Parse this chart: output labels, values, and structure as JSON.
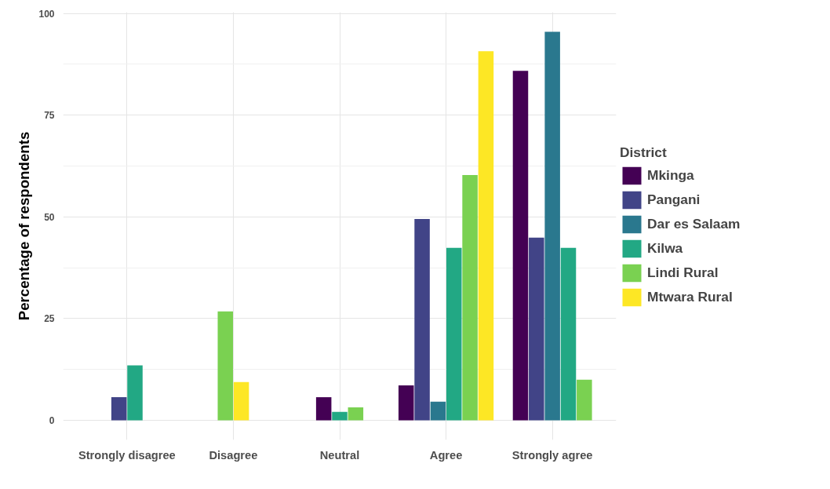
{
  "chart_data": {
    "type": "bar",
    "ylabel": "Percentage of respondents",
    "legend_title": "District",
    "categories": [
      "Strongly disagree",
      "Disagree",
      "Neutral",
      "Agree",
      "Strongly agree"
    ],
    "series": [
      {
        "name": "Mkinga",
        "color": "#440154",
        "values": [
          null,
          null,
          5.7,
          8.6,
          85.9
        ]
      },
      {
        "name": "Pangani",
        "color": "#414487",
        "values": [
          5.7,
          null,
          null,
          49.5,
          44.9
        ]
      },
      {
        "name": "Dar es Salaam",
        "color": "#2a788e",
        "values": [
          null,
          null,
          null,
          4.6,
          95.5
        ]
      },
      {
        "name": "Kilwa",
        "color": "#22a884",
        "values": [
          13.5,
          null,
          2.1,
          42.4,
          42.4
        ]
      },
      {
        "name": "Lindi Rural",
        "color": "#7ad151",
        "values": [
          null,
          26.8,
          3.2,
          60.3,
          10.0
        ]
      },
      {
        "name": "Mtwara Rural",
        "color": "#fde725",
        "values": [
          null,
          9.4,
          null,
          90.7,
          null
        ]
      }
    ],
    "ylim": [
      -4.8,
      100.3
    ],
    "yticks": [
      0,
      25,
      50,
      75,
      100
    ],
    "grid": true,
    "legend": "right"
  }
}
